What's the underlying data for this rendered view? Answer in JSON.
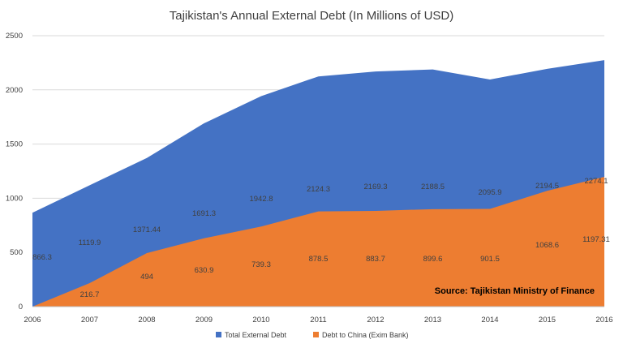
{
  "chart_data": {
    "type": "area",
    "title": "Tajikistan's Annual External Debt (In Millions of USD)",
    "xlabel": "",
    "ylabel": "",
    "x": [
      "2006",
      "2007",
      "2008",
      "2009",
      "2010",
      "2011",
      "2012",
      "2013",
      "2014",
      "2015",
      "2016"
    ],
    "ylim": [
      0,
      2500
    ],
    "yticks": [
      0,
      500,
      1000,
      1500,
      2000,
      2500
    ],
    "grid": true,
    "legend_position": "bottom",
    "series": [
      {
        "name": "Total External Debt",
        "color": "#4472C4",
        "values": [
          866.3,
          1119.9,
          1371.44,
          1691.3,
          1942.8,
          2124.3,
          2169.3,
          2188.5,
          2095.9,
          2194.5,
          2274.1
        ],
        "labels": [
          "866.3",
          "1119.9",
          "1371.44",
          "1691.3",
          "1942.8",
          "2124.3",
          "2169.3",
          "2188.5",
          "2095.9",
          "2194.5",
          "2274.1"
        ]
      },
      {
        "name": "Debt to China (Exim Bank)",
        "color": "#ED7D31",
        "values": [
          0,
          216.7,
          494,
          630.9,
          739.3,
          878.5,
          883.7,
          899.6,
          901.5,
          1068.6,
          1197.31
        ],
        "labels": [
          "",
          "216.7",
          "494",
          "630.9",
          "739.3",
          "878.5",
          "883.7",
          "899.6",
          "901.5",
          "1068.6",
          "1197.31"
        ]
      }
    ],
    "annotation": "Source: Tajikistan Ministry of Finance"
  }
}
